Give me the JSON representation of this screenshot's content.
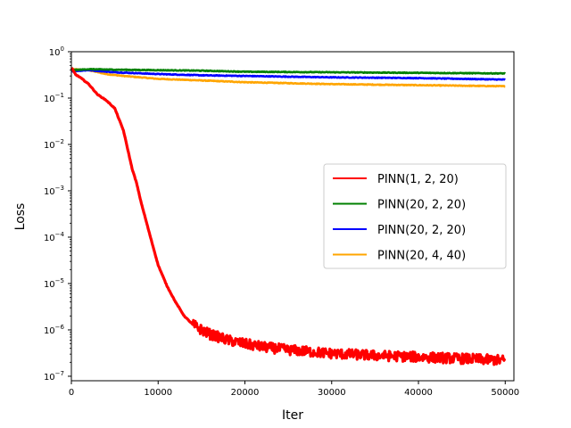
{
  "chart_data": {
    "type": "line",
    "xlabel": "Iter",
    "ylabel": "Loss",
    "yscale": "log",
    "xlim": [
      0,
      51000
    ],
    "ylim": [
      8e-08,
      1
    ],
    "x_ticks": [
      0,
      10000,
      20000,
      30000,
      40000,
      50000
    ],
    "x_tick_labels": [
      "0",
      "10000",
      "20000",
      "30000",
      "40000",
      "50000"
    ],
    "y_ticks": [
      1e-07,
      1e-06,
      1e-05,
      0.0001,
      0.001,
      0.01,
      0.1,
      1
    ],
    "y_tick_labels": [
      {
        "base": "10",
        "exp": "−7"
      },
      {
        "base": "10",
        "exp": "−6"
      },
      {
        "base": "10",
        "exp": "−5"
      },
      {
        "base": "10",
        "exp": "−4"
      },
      {
        "base": "10",
        "exp": "−3"
      },
      {
        "base": "10",
        "exp": "−2"
      },
      {
        "base": "10",
        "exp": "−1"
      },
      {
        "base": "10",
        "exp": "0"
      }
    ],
    "grid": false,
    "legend_position": "center-right",
    "series": [
      {
        "name": "PINN(1, 2, 20)",
        "color": "#ff0000",
        "noisy": true,
        "x": [
          0,
          500,
          1000,
          2000,
          3000,
          4000,
          5000,
          6000,
          7000,
          7500,
          8000,
          9000,
          10000,
          11000,
          12000,
          13000,
          14000,
          15000,
          16000,
          17000,
          18000,
          20000,
          22000,
          25000,
          30000,
          35000,
          40000,
          45000,
          50000
        ],
        "y": [
          0.45,
          0.32,
          0.28,
          0.2,
          0.12,
          0.09,
          0.06,
          0.02,
          0.003,
          0.0015,
          0.0006,
          0.00012,
          2.5e-05,
          9e-06,
          4e-06,
          2e-06,
          1.3e-06,
          1e-06,
          8e-07,
          7e-07,
          6e-07,
          5e-07,
          4.3e-07,
          3.7e-07,
          3.1e-07,
          2.8e-07,
          2.6e-07,
          2.4e-07,
          2.2e-07
        ]
      },
      {
        "name": "PINN(20, 2, 20)",
        "color": "#008000",
        "noisy": false,
        "x": [
          0,
          2000,
          5000,
          10000,
          15000,
          20000,
          30000,
          40000,
          50000
        ],
        "y": [
          0.4,
          0.42,
          0.41,
          0.4,
          0.39,
          0.37,
          0.36,
          0.35,
          0.34
        ]
      },
      {
        "name": "PINN(20, 2, 20)",
        "color": "#0000ff",
        "noisy": false,
        "x": [
          0,
          2000,
          5000,
          10000,
          15000,
          20000,
          30000,
          40000,
          50000
        ],
        "y": [
          0.38,
          0.4,
          0.36,
          0.33,
          0.31,
          0.3,
          0.28,
          0.27,
          0.25
        ]
      },
      {
        "name": "PINN(20, 4, 40)",
        "color": "#ffa500",
        "noisy": false,
        "x": [
          0,
          2000,
          4000,
          6000,
          10000,
          15000,
          20000,
          30000,
          40000,
          50000
        ],
        "y": [
          0.42,
          0.4,
          0.33,
          0.3,
          0.26,
          0.24,
          0.22,
          0.2,
          0.19,
          0.18
        ]
      }
    ]
  }
}
